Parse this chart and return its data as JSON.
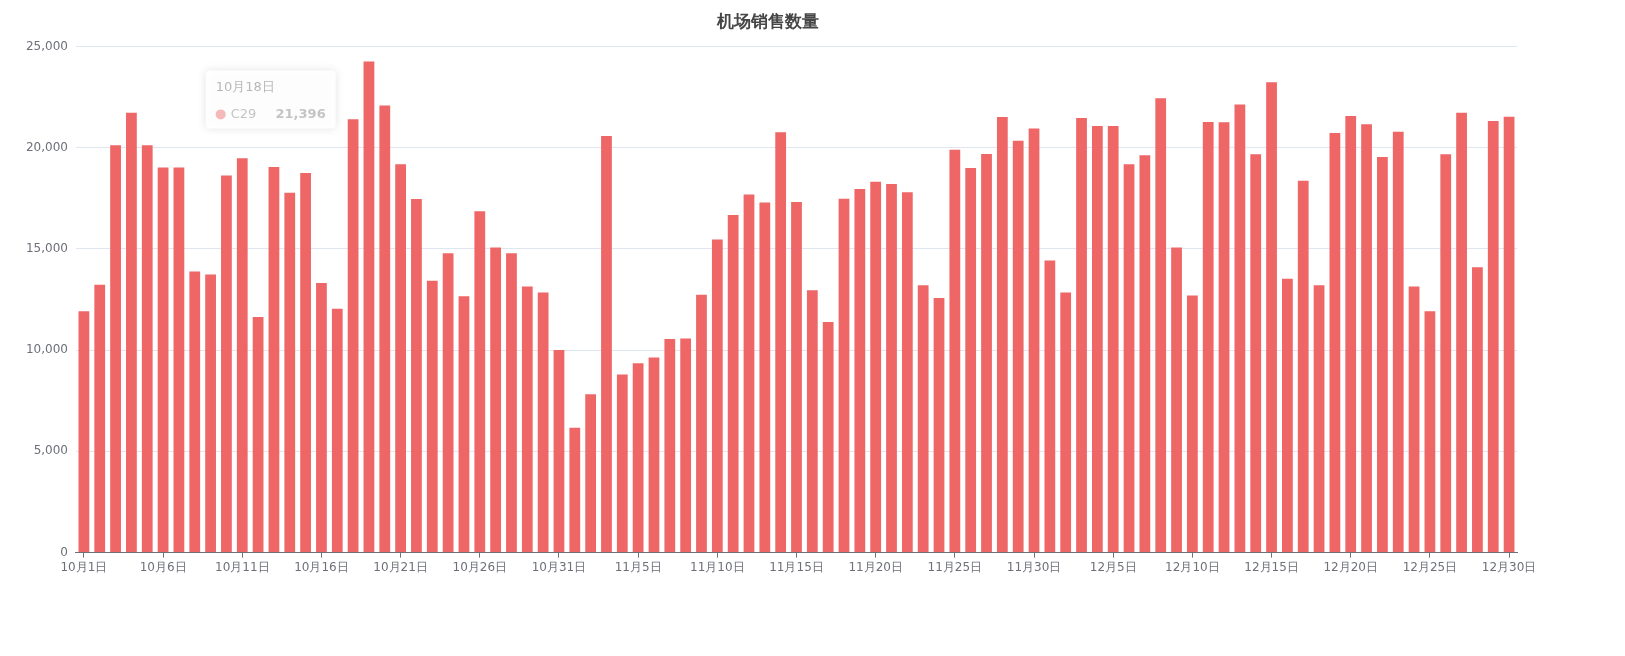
{
  "chart_data": {
    "type": "bar",
    "title": "机场销售数量",
    "categories": [
      "10月1日",
      null,
      null,
      null,
      null,
      "10月6日",
      null,
      null,
      null,
      null,
      "10月11日",
      null,
      null,
      null,
      null,
      "10月16日",
      null,
      null,
      null,
      null,
      "10月21日",
      null,
      null,
      null,
      null,
      "10月26日",
      null,
      null,
      null,
      null,
      "10月31日",
      null,
      null,
      null,
      null,
      "11月5日",
      null,
      null,
      null,
      null,
      "11月10日",
      null,
      null,
      null,
      null,
      "11月15日",
      null,
      null,
      null,
      null,
      "11月20日",
      null,
      null,
      null,
      null,
      "11月25日",
      null,
      null,
      null,
      null,
      "11月30日",
      null,
      null,
      null,
      null,
      "12月5日",
      null,
      null,
      null,
      null,
      "12月10日",
      null,
      null,
      null,
      null,
      "12月15日",
      null,
      null,
      null,
      null,
      "12月20日",
      null,
      null,
      null,
      null,
      "12月25日",
      null,
      null,
      null,
      null,
      "12月30日"
    ],
    "series": [
      {
        "name": "C29",
        "color": "#ee6666",
        "values": [
          11920,
          13230,
          20120,
          21720,
          20120,
          19020,
          19020,
          13880,
          13730,
          18630,
          19480,
          11630,
          19050,
          17770,
          18750,
          13320,
          12040,
          21396,
          24260,
          22080,
          19180,
          17460,
          13420,
          14790,
          12660,
          16860,
          15070,
          14780,
          13140,
          12850,
          10000,
          6170,
          7820,
          20570,
          8800,
          9350,
          9640,
          10550,
          10580,
          12730,
          15460,
          16670,
          17680,
          17290,
          20760,
          17320,
          12960,
          11390,
          17470,
          17960,
          18320,
          18210,
          17800,
          13200,
          12580,
          19900,
          18990,
          19690,
          21510,
          20340,
          20950,
          14420,
          12840,
          21460,
          21070,
          21070,
          19180,
          19620,
          22440,
          15070,
          12700,
          21270,
          21250,
          22130,
          19670,
          23230,
          13520,
          18370,
          13200,
          20720,
          21560,
          21150,
          19540,
          20790,
          13140,
          11920,
          19670,
          21720,
          14090,
          21320,
          21530
        ]
      }
    ],
    "annotations": [
      "10月18日",
      "21,396"
    ],
    "ylim": [
      0,
      25000
    ],
    "yticks": [
      {
        "value": 0,
        "label": "0"
      },
      {
        "value": 5000,
        "label": "5,000"
      },
      {
        "value": 10000,
        "label": "10,000"
      },
      {
        "value": 15000,
        "label": "15,000"
      },
      {
        "value": 20000,
        "label": "20,000"
      },
      {
        "value": 25000,
        "label": "25,000"
      }
    ],
    "grid": "y",
    "legend": "top"
  }
}
